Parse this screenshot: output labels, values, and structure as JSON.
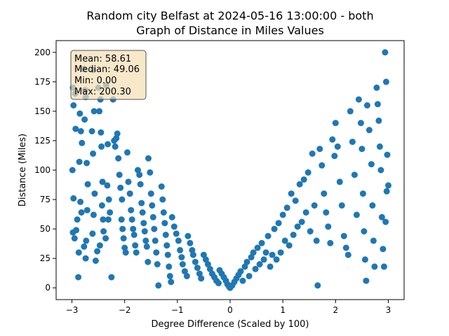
{
  "chart_data": {
    "type": "scatter",
    "title_line1": "Random city Belfast at 2024-05-16 13:00:00  - both",
    "title_line2": "Graph of Distance in Miles Values",
    "xlabel": "Degree Difference (Scaled by 100)",
    "ylabel": "Distance (Miles)",
    "xlim": [
      -3.3,
      3.3
    ],
    "ylim": [
      -10,
      210
    ],
    "xticks": [
      -3,
      -2,
      -1,
      0,
      1,
      2,
      3
    ],
    "yticks": [
      0,
      25,
      50,
      75,
      100,
      125,
      150,
      175,
      200
    ],
    "grid": false,
    "marker_color": "#1f77b4",
    "stats_box": {
      "mean": "Mean: 58.61",
      "median": "Median: 49.06",
      "min": "Min: 0.00",
      "max": "Max: 200.30",
      "placement": "top-left",
      "background": "#f5deb3"
    },
    "points": [
      [
        -2.98,
        170
      ],
      [
        -2.94,
        165
      ],
      [
        -2.97,
        155
      ],
      [
        -2.93,
        135
      ],
      [
        -2.99,
        100
      ],
      [
        -2.97,
        76
      ],
      [
        -2.98,
        47
      ],
      [
        -2.95,
        42
      ],
      [
        -2.88,
        9
      ],
      [
        -2.85,
        148
      ],
      [
        -2.83,
        133
      ],
      [
        -2.81,
        123
      ],
      [
        -2.86,
        107
      ],
      [
        -2.84,
        73
      ],
      [
        -2.82,
        64
      ],
      [
        -2.87,
        30
      ],
      [
        -2.9,
        58
      ],
      [
        -2.92,
        49
      ],
      [
        -2.78,
        186
      ],
      [
        -2.75,
        168
      ],
      [
        -2.74,
        162
      ],
      [
        -2.76,
        143
      ],
      [
        -2.72,
        106
      ],
      [
        -2.7,
        88
      ],
      [
        -2.71,
        66
      ],
      [
        -2.73,
        40
      ],
      [
        -2.77,
        35
      ],
      [
        -2.74,
        25
      ],
      [
        -2.6,
        185
      ],
      [
        -2.58,
        150
      ],
      [
        -2.62,
        133
      ],
      [
        -2.6,
        114
      ],
      [
        -2.57,
        80
      ],
      [
        -2.59,
        62
      ],
      [
        -2.61,
        46
      ],
      [
        -2.55,
        23
      ],
      [
        -2.52,
        31
      ],
      [
        -2.5,
        170
      ],
      [
        -2.46,
        160
      ],
      [
        -2.48,
        150
      ],
      [
        -2.45,
        132
      ],
      [
        -2.44,
        120
      ],
      [
        -2.42,
        90
      ],
      [
        -2.43,
        70
      ],
      [
        -2.41,
        58
      ],
      [
        -2.4,
        48
      ],
      [
        -2.47,
        36
      ],
      [
        -2.35,
        172
      ],
      [
        -2.32,
        122
      ],
      [
        -2.33,
        87
      ],
      [
        -2.3,
        75
      ],
      [
        -2.28,
        64
      ],
      [
        -2.31,
        58
      ],
      [
        -2.36,
        42
      ],
      [
        -2.25,
        9
      ],
      [
        -2.22,
        160
      ],
      [
        -2.2,
        125
      ],
      [
        -2.18,
        120
      ],
      [
        -2.16,
        127
      ],
      [
        -2.14,
        131
      ],
      [
        -2.12,
        110
      ],
      [
        -2.1,
        96
      ],
      [
        -2.08,
        85
      ],
      [
        -2.05,
        75
      ],
      [
        -2.06,
        58
      ],
      [
        -2.04,
        50
      ],
      [
        -2.02,
        42
      ],
      [
        -2.0,
        34
      ],
      [
        -1.98,
        30
      ],
      [
        -1.95,
        115
      ],
      [
        -1.93,
        90
      ],
      [
        -1.9,
        80
      ],
      [
        -1.88,
        66
      ],
      [
        -1.86,
        58
      ],
      [
        -1.84,
        50
      ],
      [
        -1.82,
        45
      ],
      [
        -1.8,
        36
      ],
      [
        -1.78,
        30
      ],
      [
        -1.75,
        100
      ],
      [
        -1.72,
        96
      ],
      [
        -1.7,
        88
      ],
      [
        -1.68,
        72
      ],
      [
        -1.66,
        64
      ],
      [
        -1.64,
        55
      ],
      [
        -1.62,
        48
      ],
      [
        -1.6,
        40
      ],
      [
        -1.58,
        35
      ],
      [
        -1.56,
        22
      ],
      [
        -1.55,
        110
      ],
      [
        -1.52,
        98
      ],
      [
        -1.5,
        80
      ],
      [
        -1.48,
        70
      ],
      [
        -1.46,
        60
      ],
      [
        -1.44,
        50
      ],
      [
        -1.42,
        40
      ],
      [
        -1.4,
        30
      ],
      [
        -1.38,
        20
      ],
      [
        -1.36,
        2
      ],
      [
        -1.3,
        86
      ],
      [
        -1.28,
        75
      ],
      [
        -1.26,
        64
      ],
      [
        -1.24,
        55
      ],
      [
        -1.22,
        45
      ],
      [
        -1.2,
        36
      ],
      [
        -1.18,
        28
      ],
      [
        -1.16,
        18
      ],
      [
        -1.14,
        10
      ],
      [
        -1.12,
        5
      ],
      [
        -1.1,
        60
      ],
      [
        -1.06,
        52
      ],
      [
        -1.02,
        46
      ],
      [
        -0.98,
        40
      ],
      [
        -0.95,
        32
      ],
      [
        -0.92,
        26
      ],
      [
        -0.9,
        20
      ],
      [
        -0.86,
        14
      ],
      [
        -0.82,
        10
      ],
      [
        -0.8,
        44
      ],
      [
        -0.76,
        38
      ],
      [
        -0.72,
        32
      ],
      [
        -0.7,
        28
      ],
      [
        -0.66,
        22
      ],
      [
        -0.62,
        17
      ],
      [
        -0.58,
        12
      ],
      [
        -0.55,
        8
      ],
      [
        -0.5,
        28
      ],
      [
        -0.46,
        24
      ],
      [
        -0.42,
        20
      ],
      [
        -0.38,
        16
      ],
      [
        -0.34,
        12
      ],
      [
        -0.3,
        9
      ],
      [
        -0.26,
        6
      ],
      [
        -0.22,
        4
      ],
      [
        -0.2,
        15
      ],
      [
        -0.16,
        12
      ],
      [
        -0.12,
        9
      ],
      [
        -0.08,
        6
      ],
      [
        -0.05,
        3
      ],
      [
        -0.02,
        1
      ],
      [
        0.0,
        0
      ],
      [
        0.04,
        2
      ],
      [
        0.08,
        5
      ],
      [
        0.12,
        8
      ],
      [
        0.16,
        11
      ],
      [
        0.2,
        14
      ],
      [
        0.24,
        6
      ],
      [
        0.28,
        18
      ],
      [
        0.32,
        22
      ],
      [
        0.36,
        10
      ],
      [
        0.4,
        26
      ],
      [
        0.44,
        30
      ],
      [
        0.48,
        16
      ],
      [
        0.52,
        34
      ],
      [
        0.56,
        20
      ],
      [
        0.6,
        38
      ],
      [
        0.64,
        24
      ],
      [
        0.68,
        30
      ],
      [
        0.72,
        44
      ],
      [
        0.76,
        18
      ],
      [
        0.8,
        28
      ],
      [
        0.84,
        50
      ],
      [
        0.88,
        24
      ],
      [
        0.92,
        55
      ],
      [
        0.96,
        30
      ],
      [
        1.0,
        62
      ],
      [
        1.04,
        40
      ],
      [
        1.08,
        68
      ],
      [
        1.12,
        36
      ],
      [
        1.16,
        80
      ],
      [
        1.2,
        45
      ],
      [
        1.24,
        74
      ],
      [
        1.28,
        52
      ],
      [
        1.32,
        88
      ],
      [
        1.36,
        56
      ],
      [
        1.4,
        92
      ],
      [
        1.44,
        64
      ],
      [
        1.48,
        98
      ],
      [
        1.52,
        48
      ],
      [
        1.56,
        114
      ],
      [
        1.6,
        70
      ],
      [
        1.64,
        40
      ],
      [
        1.66,
        2
      ],
      [
        1.7,
        118
      ],
      [
        1.74,
        104
      ],
      [
        1.78,
        80
      ],
      [
        1.82,
        64
      ],
      [
        1.86,
        52
      ],
      [
        1.9,
        38
      ],
      [
        1.94,
        126
      ],
      [
        1.98,
        112
      ],
      [
        2.0,
        140
      ],
      [
        2.04,
        120
      ],
      [
        2.08,
        90
      ],
      [
        2.12,
        70
      ],
      [
        2.16,
        44
      ],
      [
        2.2,
        34
      ],
      [
        2.24,
        28
      ],
      [
        2.28,
        150
      ],
      [
        2.32,
        124
      ],
      [
        2.36,
        96
      ],
      [
        2.4,
        62
      ],
      [
        2.44,
        160
      ],
      [
        2.48,
        140
      ],
      [
        2.5,
        118
      ],
      [
        2.52,
        80
      ],
      [
        2.54,
        48
      ],
      [
        2.56,
        24
      ],
      [
        2.58,
        6
      ],
      [
        2.6,
        155
      ],
      [
        2.64,
        134
      ],
      [
        2.68,
        105
      ],
      [
        2.7,
        70
      ],
      [
        2.72,
        40
      ],
      [
        2.74,
        18
      ],
      [
        2.78,
        170
      ],
      [
        2.8,
        156
      ],
      [
        2.82,
        142
      ],
      [
        2.84,
        120
      ],
      [
        2.86,
        100
      ],
      [
        2.88,
        60
      ],
      [
        2.9,
        33
      ],
      [
        2.92,
        18
      ],
      [
        2.94,
        200
      ],
      [
        2.96,
        175
      ],
      [
        2.98,
        113
      ],
      [
        3.0,
        87
      ],
      [
        2.97,
        82
      ],
      [
        2.95,
        56
      ]
    ]
  }
}
